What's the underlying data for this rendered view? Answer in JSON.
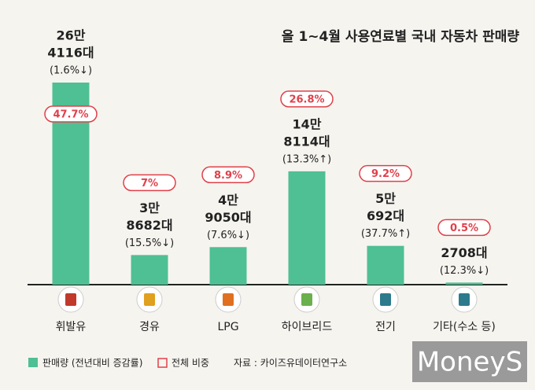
{
  "chart_data": {
    "type": "bar",
    "title": "올 1~4월 사용연료별 국내 자동차 판매량",
    "categories": [
      "휘발유",
      "경유",
      "LPG",
      "하이브리드",
      "전기",
      "기타(수소 등)"
    ],
    "values": [
      264116,
      38682,
      49050,
      148114,
      50692,
      2708
    ],
    "value_labels": [
      [
        "26만",
        "4116대"
      ],
      [
        "3만",
        "8682대"
      ],
      [
        "4만",
        "9050대"
      ],
      [
        "14만",
        "8114대"
      ],
      [
        "5만",
        "692대"
      ],
      [
        "2708대"
      ]
    ],
    "change_labels": [
      "(1.6%↓)",
      "(15.5%↓)",
      "(7.6%↓)",
      "(13.3%↑)",
      "(37.7%↑)",
      "(12.3%↓)"
    ],
    "share_values": [
      47.7,
      7,
      8.9,
      26.8,
      9.2,
      0.5
    ],
    "share_labels": [
      "47.7%",
      "7%",
      "8.9%",
      "26.8%",
      "9.2%",
      "0.5%"
    ],
    "color": "#4fbf94",
    "share_color": "#e0404a",
    "legend": {
      "bar": "판매량 (전년대비 증감률)",
      "share": "전체 비중"
    },
    "source": "자료 : 카이즈유데이터연구소",
    "logo": "MoneyS"
  }
}
